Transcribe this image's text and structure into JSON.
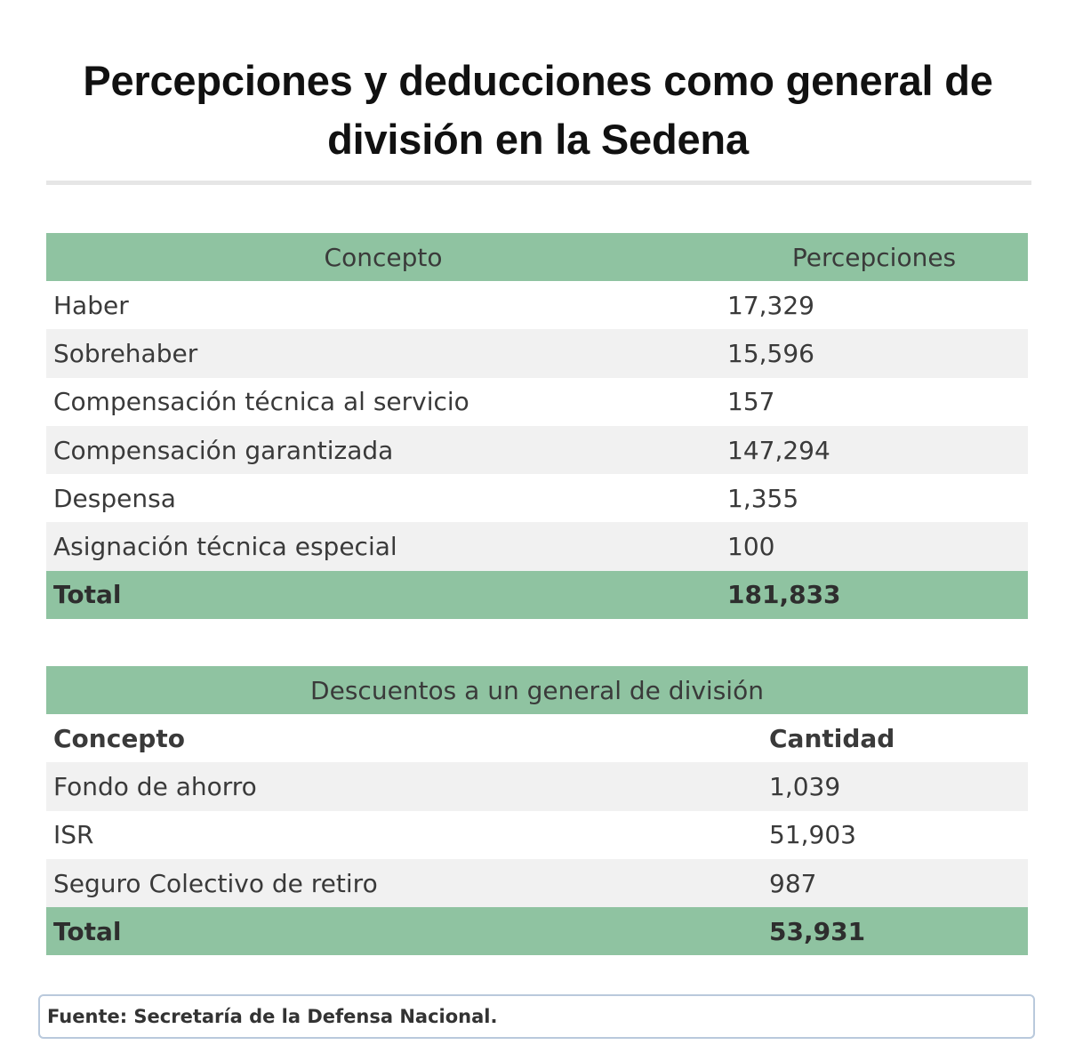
{
  "title": "Percepciones y deducciones como general de división en la Sedena",
  "percepciones": {
    "headers": [
      "Concepto",
      "Percepciones"
    ],
    "rows": [
      {
        "concepto": "Haber",
        "valor": "17,329"
      },
      {
        "concepto": "Sobrehaber",
        "valor": "15,596"
      },
      {
        "concepto": "Compensación técnica al servicio",
        "valor": "157"
      },
      {
        "concepto": "Compensación garantizada",
        "valor": "147,294"
      },
      {
        "concepto": "Despensa",
        "valor": "1,355"
      },
      {
        "concepto": "Asignación técnica especial",
        "valor": "100"
      }
    ],
    "total": {
      "label": "Total",
      "valor": "181,833"
    }
  },
  "descuentos": {
    "heading": "Descuentos a un general de división",
    "headers": [
      "Concepto",
      "Cantidad"
    ],
    "rows": [
      {
        "concepto": "Fondo de ahorro",
        "valor": "1,039"
      },
      {
        "concepto": "ISR",
        "valor": "51,903"
      },
      {
        "concepto": "Seguro Colectivo de retiro",
        "valor": "987"
      }
    ],
    "total": {
      "label": "Total",
      "valor": "53,931"
    }
  },
  "source": "Fuente: Secretaría de la Defensa Nacional.",
  "colors": {
    "header_green": "#8fc3a1",
    "row_alt": "#f1f1f1"
  }
}
